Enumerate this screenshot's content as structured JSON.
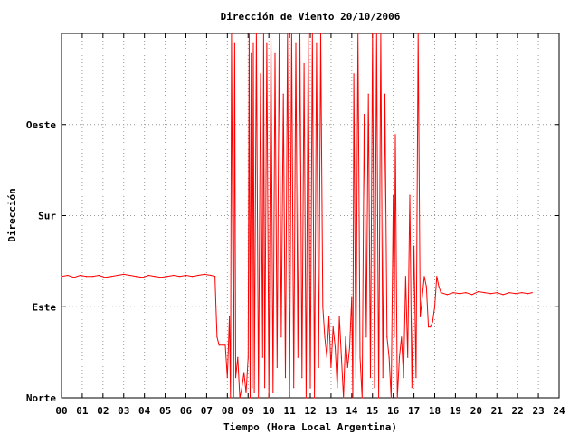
{
  "chart_data": {
    "type": "line",
    "title": "Dirección de Viento 20/10/2006",
    "xlabel": "Tiempo (Hora Local Argentina)",
    "ylabel": "Dirección",
    "xlim": [
      0,
      24
    ],
    "ylim": [
      0,
      360
    ],
    "x_ticks": [
      "00",
      "01",
      "02",
      "03",
      "04",
      "05",
      "06",
      "07",
      "08",
      "09",
      "10",
      "11",
      "12",
      "13",
      "14",
      "15",
      "16",
      "17",
      "18",
      "19",
      "20",
      "21",
      "22",
      "23",
      "24"
    ],
    "y_ticks": [
      {
        "value": 0,
        "label": "Norte"
      },
      {
        "value": 90,
        "label": "Este"
      },
      {
        "value": 180,
        "label": "Sur"
      },
      {
        "value": 270,
        "label": "Oeste"
      }
    ],
    "grid": true,
    "line_color": "#ff0000",
    "series": [
      {
        "values": [
          [
            0.0,
            120
          ],
          [
            0.3,
            121
          ],
          [
            0.6,
            119
          ],
          [
            0.9,
            121
          ],
          [
            1.2,
            120
          ],
          [
            1.5,
            120
          ],
          [
            1.8,
            121
          ],
          [
            2.1,
            119
          ],
          [
            2.4,
            120
          ],
          [
            2.7,
            121
          ],
          [
            3.0,
            122
          ],
          [
            3.3,
            121
          ],
          [
            3.6,
            120
          ],
          [
            3.9,
            119
          ],
          [
            4.2,
            121
          ],
          [
            4.5,
            120
          ],
          [
            4.8,
            119
          ],
          [
            5.1,
            120
          ],
          [
            5.4,
            121
          ],
          [
            5.7,
            120
          ],
          [
            6.0,
            121
          ],
          [
            6.3,
            120
          ],
          [
            6.6,
            121
          ],
          [
            6.9,
            122
          ],
          [
            7.2,
            121
          ],
          [
            7.4,
            120
          ],
          [
            7.45,
            90
          ],
          [
            7.5,
            60
          ],
          [
            7.6,
            52
          ],
          [
            7.9,
            52
          ],
          [
            8.0,
            20
          ],
          [
            8.1,
            80
          ],
          [
            8.15,
            0
          ],
          [
            8.2,
            360
          ],
          [
            8.3,
            0
          ],
          [
            8.35,
            350
          ],
          [
            8.4,
            20
          ],
          [
            8.5,
            40
          ],
          [
            8.6,
            0
          ],
          [
            8.7,
            10
          ],
          [
            8.8,
            25
          ],
          [
            8.9,
            5
          ],
          [
            9.0,
            40
          ],
          [
            9.05,
            360
          ],
          [
            9.1,
            0
          ],
          [
            9.15,
            340
          ],
          [
            9.2,
            10
          ],
          [
            9.25,
            350
          ],
          [
            9.3,
            5
          ],
          [
            9.4,
            360
          ],
          [
            9.5,
            0
          ],
          [
            9.6,
            320
          ],
          [
            9.7,
            40
          ],
          [
            9.75,
            360
          ],
          [
            9.8,
            10
          ],
          [
            9.9,
            350
          ],
          [
            10.0,
            0
          ],
          [
            10.1,
            360
          ],
          [
            10.2,
            5
          ],
          [
            10.3,
            340
          ],
          [
            10.4,
            30
          ],
          [
            10.5,
            360
          ],
          [
            10.6,
            60
          ],
          [
            10.7,
            300
          ],
          [
            10.8,
            20
          ],
          [
            10.9,
            360
          ],
          [
            11.0,
            0
          ],
          [
            11.1,
            360
          ],
          [
            11.2,
            10
          ],
          [
            11.3,
            350
          ],
          [
            11.4,
            40
          ],
          [
            11.5,
            360
          ],
          [
            11.6,
            20
          ],
          [
            11.7,
            330
          ],
          [
            11.8,
            0
          ],
          [
            11.9,
            360
          ],
          [
            12.0,
            10
          ],
          [
            12.1,
            370
          ],
          [
            12.2,
            0
          ],
          [
            12.3,
            350
          ],
          [
            12.4,
            30
          ],
          [
            12.5,
            360
          ],
          [
            12.6,
            90
          ],
          [
            12.7,
            60
          ],
          [
            12.8,
            40
          ],
          [
            12.9,
            80
          ],
          [
            13.0,
            30
          ],
          [
            13.1,
            70
          ],
          [
            13.2,
            50
          ],
          [
            13.3,
            10
          ],
          [
            13.4,
            80
          ],
          [
            13.5,
            40
          ],
          [
            13.6,
            0
          ],
          [
            13.7,
            60
          ],
          [
            13.8,
            30
          ],
          [
            13.9,
            50
          ],
          [
            14.0,
            100
          ],
          [
            14.05,
            0
          ],
          [
            14.1,
            320
          ],
          [
            14.2,
            20
          ],
          [
            14.3,
            360
          ],
          [
            14.4,
            40
          ],
          [
            14.5,
            0
          ],
          [
            14.6,
            280
          ],
          [
            14.7,
            60
          ],
          [
            14.8,
            300
          ],
          [
            14.9,
            20
          ],
          [
            15.0,
            360
          ],
          [
            15.1,
            10
          ],
          [
            15.2,
            370
          ],
          [
            15.3,
            0
          ],
          [
            15.4,
            360
          ],
          [
            15.5,
            20
          ],
          [
            15.6,
            300
          ],
          [
            15.7,
            60
          ],
          [
            15.8,
            40
          ],
          [
            15.9,
            0
          ],
          [
            16.0,
            200
          ],
          [
            16.05,
            60
          ],
          [
            16.1,
            260
          ],
          [
            16.2,
            0
          ],
          [
            16.3,
            40
          ],
          [
            16.4,
            60
          ],
          [
            16.5,
            20
          ],
          [
            16.6,
            120
          ],
          [
            16.7,
            40
          ],
          [
            16.8,
            200
          ],
          [
            16.9,
            10
          ],
          [
            17.0,
            150
          ],
          [
            17.1,
            20
          ],
          [
            17.2,
            360
          ],
          [
            17.3,
            80
          ],
          [
            17.4,
            100
          ],
          [
            17.5,
            120
          ],
          [
            17.6,
            110
          ],
          [
            17.7,
            70
          ],
          [
            17.8,
            70
          ],
          [
            17.9,
            75
          ],
          [
            18.0,
            90
          ],
          [
            18.1,
            120
          ],
          [
            18.2,
            110
          ],
          [
            18.3,
            104
          ],
          [
            18.6,
            102
          ],
          [
            18.9,
            104
          ],
          [
            19.2,
            103
          ],
          [
            19.5,
            104
          ],
          [
            19.8,
            102
          ],
          [
            20.1,
            105
          ],
          [
            20.4,
            104
          ],
          [
            20.7,
            103
          ],
          [
            21.0,
            104
          ],
          [
            21.3,
            102
          ],
          [
            21.6,
            104
          ],
          [
            21.9,
            103
          ],
          [
            22.2,
            104
          ],
          [
            22.5,
            103
          ],
          [
            22.7,
            104
          ]
        ]
      }
    ]
  }
}
